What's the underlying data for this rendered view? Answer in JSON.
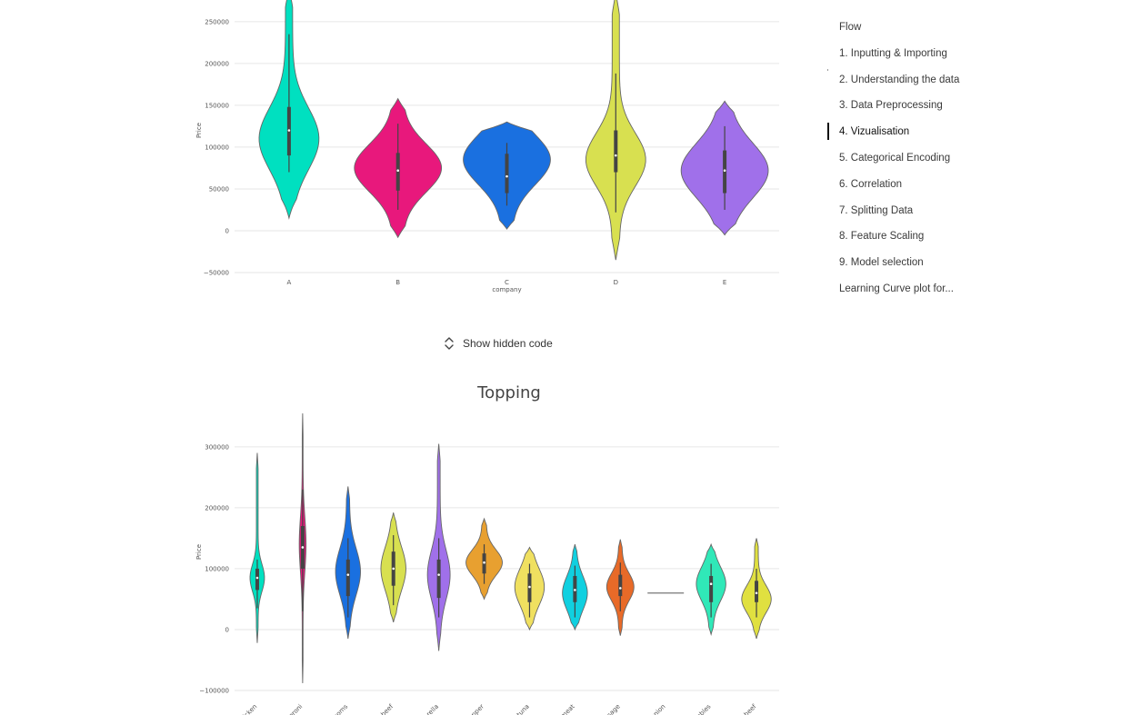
{
  "toggle": {
    "label": "Show hidden code"
  },
  "toc": {
    "items": [
      {
        "label": "Flow",
        "active": false
      },
      {
        "label": "1. Inputting & Importing",
        "active": false
      },
      {
        "label": "2. Understanding the data",
        "active": false
      },
      {
        "label": "3. Data Preprocessing",
        "active": false
      },
      {
        "label": "4. Vizualisation",
        "active": true
      },
      {
        "label": "5. Categorical Encoding",
        "active": false
      },
      {
        "label": "6. Correlation",
        "active": false
      },
      {
        "label": "7. Splitting Data",
        "active": false
      },
      {
        "label": "8. Feature Scaling",
        "active": false
      },
      {
        "label": "9. Model selection",
        "active": false
      },
      {
        "label": "Learning Curve plot for...",
        "active": false
      }
    ]
  },
  "chart_data": [
    {
      "type": "violin",
      "title": "",
      "xlabel": "company",
      "ylabel": "Price",
      "ylim": [
        -50000,
        290000
      ],
      "yticks": [
        -50000,
        0,
        50000,
        100000,
        150000,
        200000,
        250000
      ],
      "ytick_labels": [
        "−50000",
        "0",
        "50000",
        "100000",
        "150000",
        "200000",
        "250000"
      ],
      "categories": [
        "A",
        "B",
        "C",
        "D",
        "E"
      ],
      "colors": [
        "#00e0c0",
        "#e8187c",
        "#1a70e0",
        "#d8e050",
        "#a070ea"
      ],
      "violins": [
        {
          "min": 15000,
          "max": 290000,
          "q1": 90000,
          "median": 120000,
          "q3": 148000,
          "w_low": 70000,
          "w_high": 235000,
          "mode": 110000,
          "width": 0.55
        },
        {
          "min": -8000,
          "max": 158000,
          "q1": 48000,
          "median": 72000,
          "q3": 93000,
          "w_low": 25000,
          "w_high": 128000,
          "mode": 75000,
          "width": 0.8
        },
        {
          "min": 2000,
          "max": 130000,
          "q1": 45000,
          "median": 65000,
          "q3": 92000,
          "w_low": 30000,
          "w_high": 105000,
          "mode": 85000,
          "width": 0.8
        },
        {
          "min": -35000,
          "max": 285000,
          "q1": 70000,
          "median": 90000,
          "q3": 120000,
          "w_low": 22000,
          "w_high": 188000,
          "mode": 85000,
          "width": 0.55
        },
        {
          "min": -5000,
          "max": 155000,
          "q1": 45000,
          "median": 72000,
          "q3": 96000,
          "w_low": 25000,
          "w_high": 125000,
          "mode": 72000,
          "width": 0.8
        }
      ]
    },
    {
      "type": "violin",
      "title": "Topping",
      "xlabel": "",
      "ylabel": "Price",
      "ylim": [
        -100000,
        355000
      ],
      "yticks": [
        -100000,
        0,
        100000,
        200000,
        300000
      ],
      "ytick_labels": [
        "−100000",
        "0",
        "100000",
        "200000",
        "300000"
      ],
      "categories": [
        "chicken",
        "papperoni",
        "mushrooms",
        "smoked beef",
        "mozzarella",
        "black papper",
        "tuna",
        "meat",
        "sausage",
        "onion",
        "vegetables",
        "beef"
      ],
      "colors": [
        "#00e0c0",
        "#e8187c",
        "#1a70e0",
        "#d8e050",
        "#a070ea",
        "#e8a030",
        "#f0e060",
        "#10d0e0",
        "#e86a28",
        "#9a9a9a",
        "#30e8b8",
        "#e0e040"
      ],
      "violins": [
        {
          "min": -22000,
          "max": 290000,
          "q1": 65000,
          "median": 85000,
          "q3": 100000,
          "w_low": 35000,
          "w_high": 115000,
          "mode": 85000,
          "width": 0.32
        },
        {
          "min": -88000,
          "max": 355000,
          "q1": 100000,
          "median": 135000,
          "q3": 170000,
          "w_low": 30000,
          "w_high": 230000,
          "mode": 140000,
          "width": 0.15
        },
        {
          "min": -15000,
          "max": 235000,
          "q1": 55000,
          "median": 90000,
          "q3": 115000,
          "w_low": 20000,
          "w_high": 150000,
          "mode": 95000,
          "width": 0.55
        },
        {
          "min": 12000,
          "max": 192000,
          "q1": 72000,
          "median": 100000,
          "q3": 128000,
          "w_low": 40000,
          "w_high": 155000,
          "mode": 100000,
          "width": 0.55
        },
        {
          "min": -35000,
          "max": 305000,
          "q1": 52000,
          "median": 90000,
          "q3": 115000,
          "w_low": 20000,
          "w_high": 150000,
          "mode": 90000,
          "width": 0.5
        },
        {
          "min": 50000,
          "max": 182000,
          "q1": 92000,
          "median": 110000,
          "q3": 125000,
          "w_low": 75000,
          "w_high": 140000,
          "mode": 110000,
          "width": 0.8
        },
        {
          "min": 0,
          "max": 135000,
          "q1": 45000,
          "median": 70000,
          "q3": 92000,
          "w_low": 20000,
          "w_high": 108000,
          "mode": 70000,
          "width": 0.65
        },
        {
          "min": 0,
          "max": 140000,
          "q1": 45000,
          "median": 65000,
          "q3": 88000,
          "w_low": 20000,
          "w_high": 105000,
          "mode": 60000,
          "width": 0.55
        },
        {
          "min": -10000,
          "max": 148000,
          "q1": 55000,
          "median": 68000,
          "q3": 90000,
          "w_low": 30000,
          "w_high": 110000,
          "mode": 70000,
          "width": 0.6
        },
        {
          "min": 60000,
          "max": 60000,
          "q1": 60000,
          "median": 60000,
          "q3": 60000,
          "w_low": 60000,
          "w_high": 60000,
          "mode": 60000,
          "width": 0.8
        },
        {
          "min": -8000,
          "max": 140000,
          "q1": 45000,
          "median": 75000,
          "q3": 88000,
          "w_low": 20000,
          "w_high": 108000,
          "mode": 75000,
          "width": 0.65
        },
        {
          "min": -15000,
          "max": 150000,
          "q1": 45000,
          "median": 60000,
          "q3": 80000,
          "w_low": 20000,
          "w_high": 100000,
          "mode": 50000,
          "width": 0.65
        }
      ]
    }
  ]
}
